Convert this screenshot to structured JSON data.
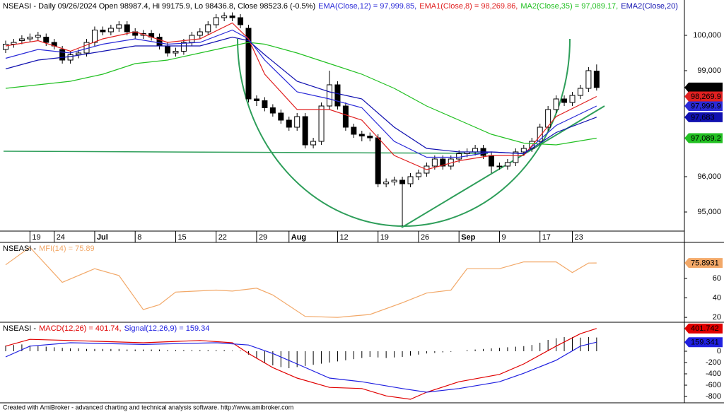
{
  "chart_data": [
    {
      "type": "candlestick",
      "title": "NSEASI - Daily 09/26/2024 Open 98987.4, Hi 99175.9, Lo 98436.8, Close 98523.6 (-0.5%)",
      "categories": [
        null,
        null,
        null,
        "19",
        null,
        null,
        "24",
        null,
        null,
        null,
        null,
        "Jul",
        null,
        null,
        null,
        null,
        "8",
        null,
        null,
        null,
        null,
        "15",
        null,
        null,
        null,
        null,
        "22",
        null,
        null,
        null,
        null,
        "29",
        null,
        null,
        null,
        "Aug",
        null,
        null,
        null,
        null,
        null,
        "12",
        null,
        null,
        null,
        null,
        "19",
        null,
        null,
        null,
        null,
        "26",
        null,
        null,
        null,
        null,
        "Sep",
        null,
        null,
        null,
        null,
        "9",
        null,
        null,
        null,
        null,
        "17",
        null,
        null,
        null,
        "23",
        null,
        null,
        null
      ],
      "open": [
        99600,
        99750,
        99850,
        99900,
        99950,
        99950,
        99800,
        99600,
        99300,
        99450,
        99500,
        99800,
        100150,
        100100,
        100200,
        100300,
        100100,
        100000,
        100050,
        99950,
        99700,
        99500,
        99550,
        99800,
        100000,
        100100,
        100300,
        100500,
        100550,
        100500,
        100200,
        98200,
        98150,
        97950,
        97800,
        97600,
        97400,
        97700,
        96900,
        97000,
        98000,
        98600,
        98000,
        97400,
        97200,
        97150,
        97100,
        95800,
        95850,
        95900,
        95800,
        96000,
        96100,
        96300,
        96500,
        96300,
        96500,
        96650,
        96700,
        96800,
        96600,
        96300,
        96300,
        96400,
        96700,
        96800,
        97000,
        97400,
        97900,
        98200,
        98100,
        98300,
        98500,
        98987.4
      ],
      "high": [
        99850,
        99900,
        100000,
        100050,
        100100,
        100050,
        99900,
        99700,
        99550,
        99600,
        99900,
        100250,
        100250,
        100300,
        100400,
        100400,
        100200,
        100150,
        100150,
        100050,
        99800,
        99650,
        99900,
        100100,
        100200,
        100400,
        100600,
        100650,
        100650,
        100600,
        100300,
        98300,
        98250,
        98050,
        97900,
        97700,
        97800,
        97800,
        97100,
        98100,
        99000,
        98700,
        98100,
        97500,
        97300,
        97250,
        97200,
        95950,
        96000,
        96000,
        96100,
        96200,
        96400,
        96600,
        96600,
        96600,
        96750,
        96800,
        96900,
        96900,
        96700,
        96400,
        96500,
        96800,
        96900,
        97100,
        97500,
        98000,
        98300,
        98300,
        98400,
        98600,
        99100,
        99175.9
      ],
      "low": [
        99500,
        99650,
        99750,
        99800,
        99850,
        99700,
        99600,
        99200,
        99200,
        99350,
        99400,
        99700,
        100000,
        100000,
        100100,
        100000,
        99900,
        99900,
        99850,
        99600,
        99400,
        99400,
        99450,
        99700,
        99900,
        100000,
        100200,
        100400,
        100400,
        100200,
        98100,
        98000,
        97850,
        97700,
        97500,
        97300,
        97300,
        96800,
        96800,
        96900,
        97900,
        97900,
        97300,
        97100,
        97000,
        97000,
        95700,
        95700,
        95750,
        94600,
        95700,
        95900,
        96000,
        96200,
        96200,
        96200,
        96400,
        96550,
        96600,
        96500,
        96100,
        96200,
        96200,
        96300,
        96600,
        96700,
        96900,
        97300,
        97800,
        98000,
        98000,
        98200,
        98400,
        98436.8
      ],
      "close": [
        99750,
        99800,
        99900,
        99950,
        100000,
        99800,
        99700,
        99300,
        99450,
        99500,
        99800,
        100150,
        100100,
        100200,
        100300,
        100100,
        100000,
        100050,
        99950,
        99700,
        99500,
        99550,
        99800,
        100000,
        100100,
        100300,
        100500,
        100550,
        100500,
        100300,
        98200,
        98150,
        97950,
        97800,
        97600,
        97400,
        97700,
        96900,
        97000,
        98000,
        98600,
        98000,
        97400,
        97200,
        97150,
        97100,
        95800,
        95850,
        95900,
        95800,
        96000,
        96100,
        96300,
        96500,
        96300,
        96500,
        96650,
        96700,
        96800,
        96600,
        96300,
        96300,
        96400,
        96700,
        96800,
        97000,
        97400,
        97900,
        98200,
        98100,
        98300,
        98500,
        99000,
        98523.6
      ],
      "value_labels": {
        "73": "98,523.6"
      },
      "color": "#000000",
      "ylim": [
        94460,
        101000
      ],
      "yticks": [
        {
          "value": 95000,
          "label": "95,000"
        },
        {
          "value": 96000,
          "label": "96,000"
        },
        {
          "value": 99000,
          "label": "99,000"
        },
        {
          "value": 100000,
          "label": "100,000"
        }
      ],
      "series": [
        {
          "name": "EMA(Close,12) = 97,999.85,",
          "color": "#2a2ad8",
          "x": [
            0,
            4,
            8,
            12,
            16,
            20,
            24,
            28,
            30,
            32,
            36,
            40,
            44,
            48,
            52,
            56,
            60,
            64,
            68,
            73
          ],
          "values": [
            99350,
            99600,
            99500,
            99750,
            99900,
            99750,
            99800,
            100150,
            99900,
            99300,
            98400,
            98200,
            97950,
            97000,
            96550,
            96550,
            96700,
            96650,
            97450,
            97999.85
          ],
          "value_labels": {
            "19": "97,999.9"
          }
        },
        {
          "name": "EMA1(Close,8) = 98,269.86,",
          "color": "#e02020",
          "x": [
            0,
            4,
            8,
            12,
            16,
            20,
            24,
            28,
            30,
            32,
            36,
            40,
            44,
            48,
            52,
            56,
            60,
            64,
            68,
            73
          ],
          "values": [
            99700,
            99850,
            99550,
            99900,
            100100,
            99800,
            99900,
            100350,
            99900,
            98900,
            97900,
            97900,
            97600,
            96600,
            96200,
            96450,
            96600,
            96600,
            97700,
            98269.86
          ],
          "value_labels": {
            "19": "98,269.9"
          }
        },
        {
          "name": "MA2(Close,35) = 97,089.17,",
          "color": "#22c022",
          "x": [
            0,
            4,
            8,
            12,
            16,
            20,
            24,
            28,
            30,
            32,
            36,
            40,
            44,
            48,
            52,
            56,
            60,
            64,
            68,
            73
          ],
          "values": [
            98500,
            98600,
            98700,
            98900,
            99200,
            99300,
            99500,
            99700,
            99800,
            99750,
            99500,
            99200,
            98900,
            98500,
            98000,
            97600,
            97200,
            96950,
            96900,
            97089.17
          ],
          "value_labels": {
            "19": "97,089.2"
          }
        },
        {
          "name": "EMA2(Close,20)",
          "color": "#1010b0",
          "x": [
            0,
            4,
            8,
            12,
            16,
            20,
            24,
            28,
            30,
            32,
            36,
            40,
            44,
            48,
            52,
            56,
            60,
            64,
            68,
            73
          ],
          "values": [
            99050,
            99300,
            99400,
            99550,
            99700,
            99700,
            99700,
            99950,
            99850,
            99450,
            98700,
            98400,
            98200,
            97400,
            96800,
            96700,
            96700,
            96650,
            97250,
            97683
          ],
          "value_labels": {
            "19": "97,683"
          }
        }
      ]
    },
    {
      "type": "line",
      "title": "NSEASI -",
      "ylim": [
        15,
        97
      ],
      "yticks": [
        20,
        40,
        60
      ],
      "series": [
        {
          "name": "MFI(14) = 75.89",
          "color": "#f2a868",
          "x": [
            0,
            3,
            7,
            11,
            14,
            17,
            19,
            21,
            26,
            28,
            31,
            33,
            37,
            41,
            45,
            49,
            52,
            55,
            57,
            61,
            64,
            68,
            70,
            72,
            73
          ],
          "values": [
            74,
            92,
            56,
            70,
            63,
            28,
            33,
            46,
            48,
            47,
            50,
            43,
            21,
            20,
            23,
            35,
            45,
            48,
            70,
            70,
            77,
            77,
            66,
            75.8,
            75.8931
          ],
          "value_labels": {
            "24": "75.8931"
          }
        }
      ]
    },
    {
      "type": "line",
      "title": "NSEASI -",
      "ylim": [
        -912,
        512
      ],
      "yticks": [
        0,
        -200,
        -400,
        -600,
        -800
      ],
      "histogram": [
        100,
        110,
        120,
        100,
        90,
        80,
        70,
        60,
        50,
        50,
        40,
        40,
        40,
        40,
        40,
        30,
        30,
        30,
        30,
        30,
        20,
        20,
        20,
        20,
        20,
        20,
        20,
        20,
        10,
        10,
        -60,
        -130,
        -200,
        -250,
        -280,
        -300,
        -280,
        -260,
        -240,
        -220,
        -200,
        -180,
        -160,
        -140,
        -120,
        -100,
        -110,
        -120,
        -110,
        -100,
        -80,
        -60,
        -40,
        -30,
        -20,
        -10,
        0,
        20,
        30,
        40,
        50,
        60,
        70,
        80,
        90,
        110,
        150,
        200,
        230,
        250,
        250,
        240,
        250,
        242.4
      ],
      "histogram_color": "#000000",
      "series": [
        {
          "name": "MACD(12,26) = 401.74,",
          "color": "#e00000",
          "x": [
            0,
            3,
            8,
            17,
            24,
            28,
            30,
            33,
            36,
            40,
            44,
            47,
            50,
            52,
            56,
            61,
            64,
            68,
            71,
            73
          ],
          "values": [
            90,
            210,
            190,
            150,
            190,
            150,
            -40,
            -290,
            -475,
            -640,
            -660,
            -790,
            -850,
            -725,
            -540,
            -410,
            -225,
            90,
            310,
            401.742
          ],
          "value_labels": {
            "19": "401.742"
          }
        },
        {
          "name": "Signal(12,26,9) = 159.34",
          "color": "#2020e0",
          "x": [
            0,
            3,
            8,
            17,
            26,
            30,
            33,
            36,
            40,
            44,
            49,
            52,
            56,
            61,
            64,
            68,
            71,
            73
          ],
          "values": [
            -100,
            90,
            150,
            120,
            150,
            110,
            -40,
            -225,
            -475,
            -540,
            -660,
            -725,
            -660,
            -540,
            -390,
            -160,
            90,
            159.341
          ],
          "value_labels": {
            "17": "159.341"
          }
        }
      ]
    }
  ],
  "footer": "Created with AmiBroker - advanced charting and technical analysis software. http://www.amibroker.com"
}
